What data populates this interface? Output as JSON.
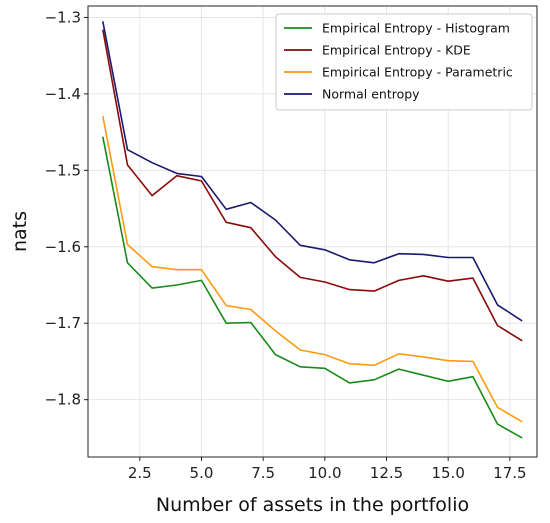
{
  "chart_data": {
    "type": "line",
    "title": "",
    "xlabel": "Number of assets in the portfolio",
    "ylabel": "nats",
    "xlim": [
      0.4,
      18.6
    ],
    "ylim": [
      -1.875,
      -1.285
    ],
    "xticks": [
      2.5,
      5.0,
      7.5,
      10.0,
      12.5,
      15.0,
      17.5
    ],
    "xtick_labels": [
      "2.5",
      "5.0",
      "7.5",
      "10.0",
      "12.5",
      "15.0",
      "17.5"
    ],
    "yticks": [
      -1.3,
      -1.4,
      -1.5,
      -1.6,
      -1.7,
      -1.8
    ],
    "ytick_labels": [
      "−1.3",
      "−1.4",
      "−1.5",
      "−1.6",
      "−1.7",
      "−1.8"
    ],
    "grid": true,
    "legend_position": "top-right",
    "x": [
      1,
      2,
      3,
      4,
      5,
      6,
      7,
      8,
      9,
      10,
      11,
      12,
      13,
      14,
      15,
      16,
      17,
      18
    ],
    "series": [
      {
        "name": "Empirical Entropy - Histogram",
        "color": "#1a8a1a",
        "values": [
          -1.456,
          -1.621,
          -1.654,
          -1.65,
          -1.644,
          -1.7,
          -1.699,
          -1.741,
          -1.757,
          -1.759,
          -1.778,
          -1.774,
          -1.76,
          -1.768,
          -1.776,
          -1.77,
          -1.832,
          -1.85
        ]
      },
      {
        "name": "Empirical Entropy - KDE",
        "color": "#8b0a0a",
        "values": [
          -1.316,
          -1.493,
          -1.533,
          -1.507,
          -1.514,
          -1.568,
          -1.575,
          -1.613,
          -1.64,
          -1.646,
          -1.656,
          -1.658,
          -1.644,
          -1.638,
          -1.645,
          -1.641,
          -1.703,
          -1.723
        ]
      },
      {
        "name": "Empirical Entropy - Parametric",
        "color": "#ff9a10",
        "values": [
          -1.429,
          -1.597,
          -1.626,
          -1.63,
          -1.63,
          -1.677,
          -1.682,
          -1.71,
          -1.735,
          -1.741,
          -1.753,
          -1.755,
          -1.74,
          -1.744,
          -1.749,
          -1.75,
          -1.81,
          -1.829
        ]
      },
      {
        "name": "Normal entropy",
        "color": "#1a1a6e",
        "values": [
          -1.305,
          -1.473,
          -1.49,
          -1.504,
          -1.508,
          -1.551,
          -1.542,
          -1.565,
          -1.598,
          -1.604,
          -1.617,
          -1.621,
          -1.609,
          -1.61,
          -1.614,
          -1.614,
          -1.676,
          -1.697
        ]
      }
    ]
  }
}
